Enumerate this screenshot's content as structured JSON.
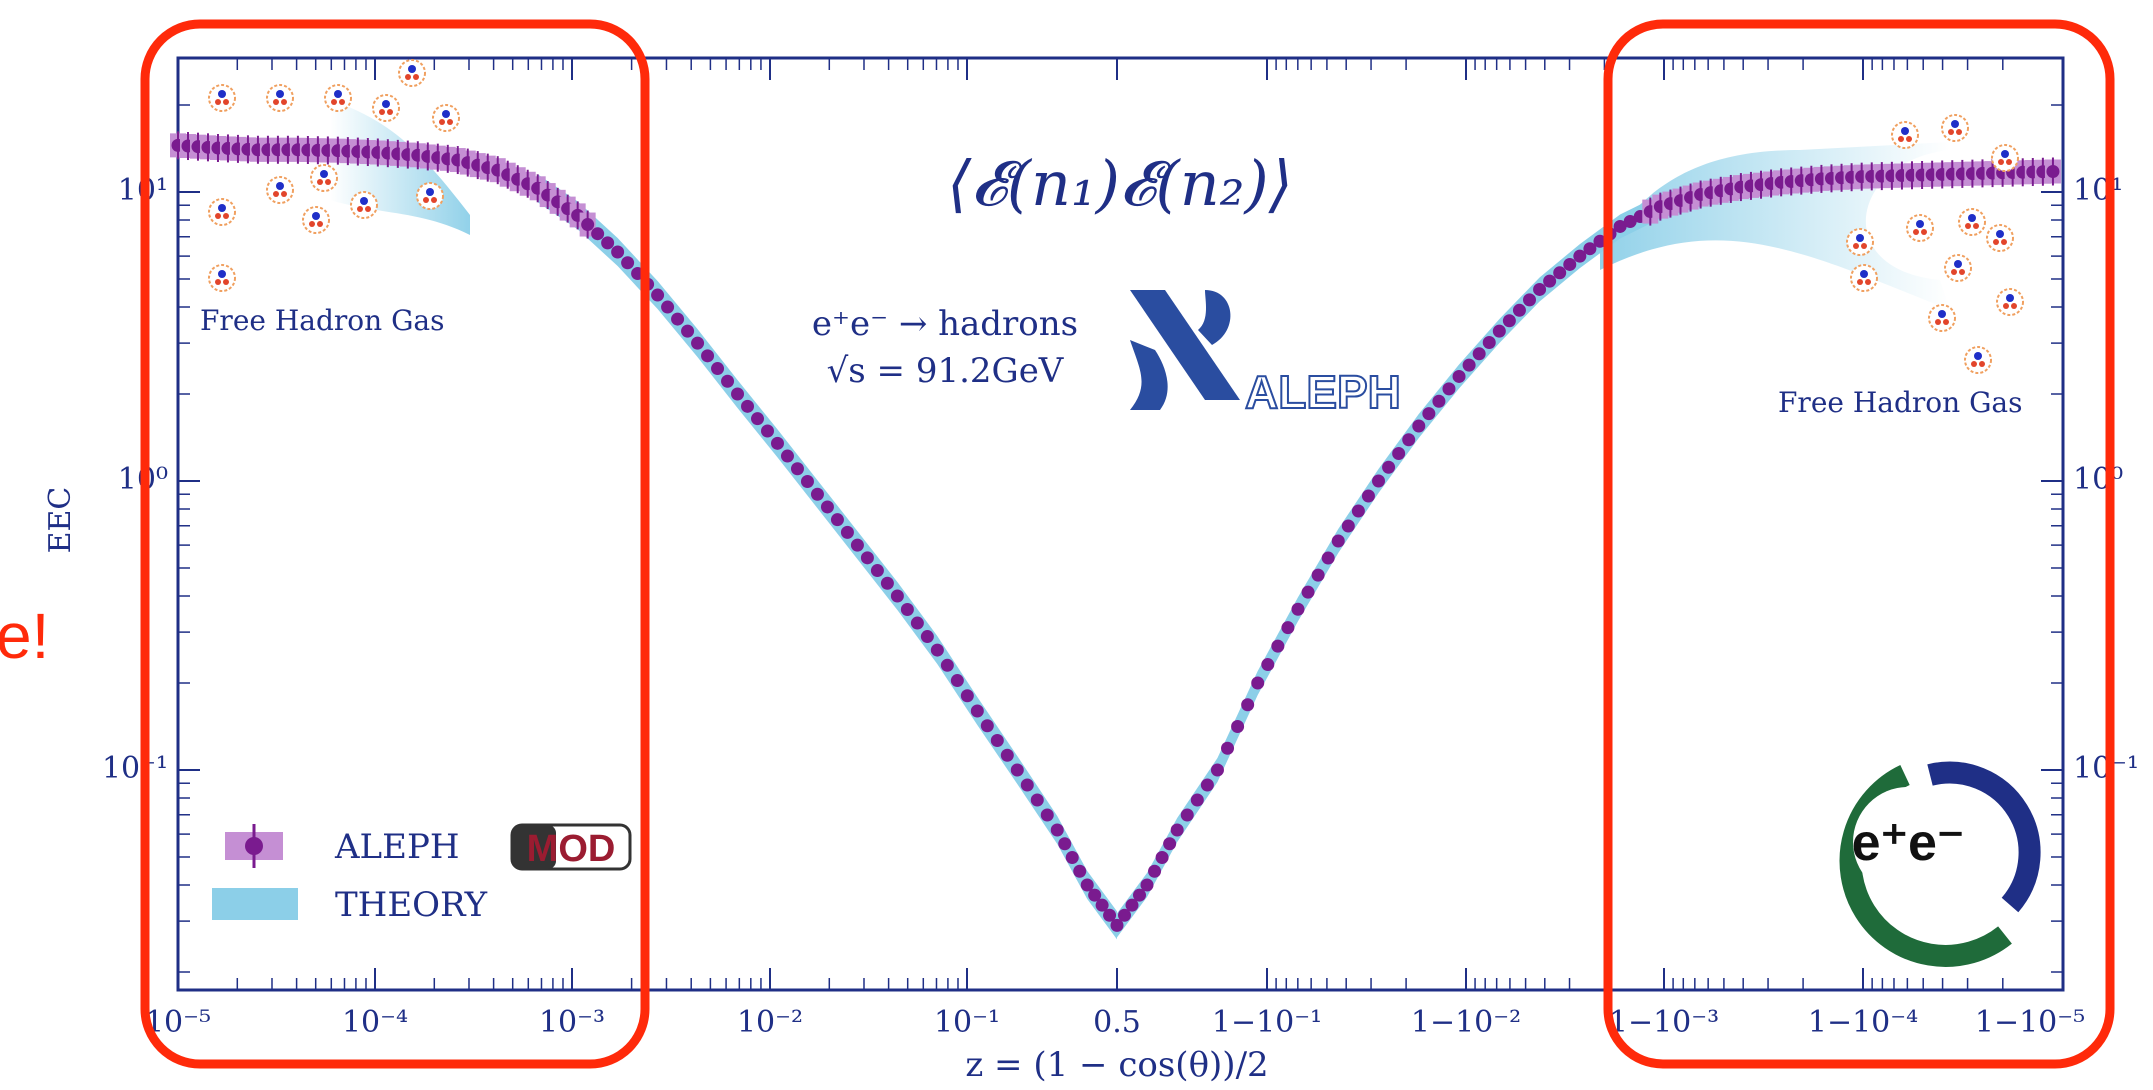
{
  "colors": {
    "axis": "#1f2f86",
    "data": "#7a1b8f",
    "data_band": "#c58fd4",
    "theory": "#8ccfe8",
    "annotation_red": "#ff2a0a",
    "logo_blue": "#2a4da0",
    "logo_green": "#1f6b3a"
  },
  "partial_text": "e!",
  "chart_data": {
    "type": "scatter",
    "title": "⟨𝓔(n₁)𝓔(n₂)⟩",
    "xlabel": "z = (1 − cos(θ))/2",
    "ylabel": "EEC",
    "x_scale": "double-log (log z toward 0.5, log(1−z) beyond 0.5)",
    "y_scale": "log",
    "ylim": [
      0.017,
      30
    ],
    "x_ticks": [
      "10⁻⁵",
      "10⁻⁴",
      "10⁻³",
      "10⁻²",
      "10⁻¹",
      "0.5",
      "1−10⁻¹",
      "1−10⁻²",
      "1−10⁻³",
      "1−10⁻⁴",
      "1−10⁻⁵"
    ],
    "y_ticks_left": [
      "10¹",
      "10⁰",
      "10⁻¹"
    ],
    "y_ticks_right": [
      "10¹",
      "10⁰",
      "10⁻¹"
    ],
    "process": "e⁺e⁻ → hadrons",
    "energy": "√s = 91.2GeV",
    "experiment_logo_text": "ALEPH",
    "badge_text": "MOD",
    "corner_logo_text": "e⁺e⁻",
    "annotations": [
      "Free Hadron Gas",
      "Free Hadron Gas"
    ],
    "legend": [
      {
        "label": "ALEPH",
        "marker": "point-with-band"
      },
      {
        "label": "THEORY",
        "marker": "band"
      }
    ],
    "series": [
      {
        "name": "ALEPH",
        "points_note": "x in decades: log10(z) for z<0.5, 'tail' x given as log10(1−z)",
        "left_branch": [
          {
            "log10_z": -5.0,
            "y": 14.5
          },
          {
            "log10_z": -4.8,
            "y": 14.2
          },
          {
            "log10_z": -4.6,
            "y": 14.0
          },
          {
            "log10_z": -4.4,
            "y": 14.0
          },
          {
            "log10_z": -4.2,
            "y": 13.9
          },
          {
            "log10_z": -4.0,
            "y": 13.7
          },
          {
            "log10_z": -3.8,
            "y": 13.4
          },
          {
            "log10_z": -3.6,
            "y": 12.9
          },
          {
            "log10_z": -3.4,
            "y": 11.9
          },
          {
            "log10_z": -3.2,
            "y": 10.3
          },
          {
            "log10_z": -3.0,
            "y": 8.3
          },
          {
            "log10_z": -2.8,
            "y": 6.2
          },
          {
            "log10_z": -2.6,
            "y": 4.4
          },
          {
            "log10_z": -2.4,
            "y": 3.0
          },
          {
            "log10_z": -2.2,
            "y": 2.0
          },
          {
            "log10_z": -2.0,
            "y": 1.35
          },
          {
            "log10_z": -1.8,
            "y": 0.9
          },
          {
            "log10_z": -1.6,
            "y": 0.6
          },
          {
            "log10_z": -1.4,
            "y": 0.4
          },
          {
            "log10_z": -1.2,
            "y": 0.26
          },
          {
            "log10_z": -1.0,
            "y": 0.16
          },
          {
            "log10_z": -0.8,
            "y": 0.1
          },
          {
            "log10_z": -0.6,
            "y": 0.062
          },
          {
            "log10_z": -0.45,
            "y": 0.04
          },
          {
            "log10_z": -0.301,
            "y": 0.029
          }
        ],
        "right_branch": [
          {
            "log10_1mz": -0.301,
            "y": 0.029
          },
          {
            "log10_1mz": -0.45,
            "y": 0.04
          },
          {
            "log10_1mz": -0.6,
            "y": 0.062
          },
          {
            "log10_1mz": -0.8,
            "y": 0.1
          },
          {
            "log10_1mz": -1.0,
            "y": 0.2
          },
          {
            "log10_1mz": -1.2,
            "y": 0.36
          },
          {
            "log10_1mz": -1.4,
            "y": 0.62
          },
          {
            "log10_1mz": -1.6,
            "y": 1.0
          },
          {
            "log10_1mz": -1.8,
            "y": 1.55
          },
          {
            "log10_1mz": -2.0,
            "y": 2.3
          },
          {
            "log10_1mz": -2.2,
            "y": 3.3
          },
          {
            "log10_1mz": -2.4,
            "y": 4.6
          },
          {
            "log10_1mz": -2.6,
            "y": 6.0
          },
          {
            "log10_1mz": -2.8,
            "y": 7.6
          },
          {
            "log10_1mz": -3.0,
            "y": 8.9
          },
          {
            "log10_1mz": -3.2,
            "y": 9.8
          },
          {
            "log10_1mz": -3.4,
            "y": 10.4
          },
          {
            "log10_1mz": -3.6,
            "y": 10.8
          },
          {
            "log10_1mz": -3.8,
            "y": 11.1
          },
          {
            "log10_1mz": -4.0,
            "y": 11.3
          },
          {
            "log10_1mz": -4.2,
            "y": 11.4
          },
          {
            "log10_1mz": -4.4,
            "y": 11.5
          },
          {
            "log10_1mz": -4.6,
            "y": 11.6
          },
          {
            "log10_1mz": -4.8,
            "y": 11.7
          },
          {
            "log10_1mz": -5.0,
            "y": 11.8
          }
        ]
      }
    ]
  }
}
